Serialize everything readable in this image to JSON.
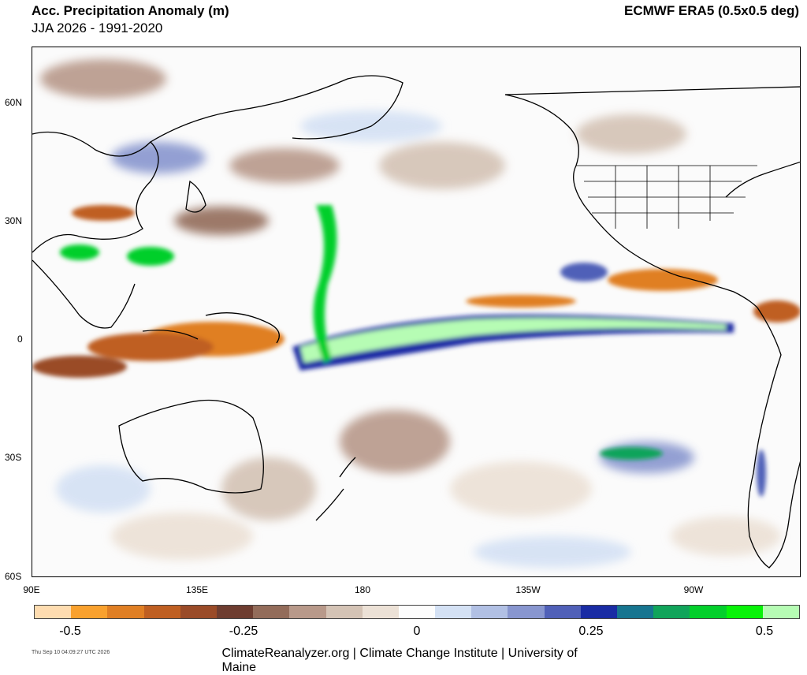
{
  "header": {
    "title": "Acc. Precipitation Anomaly (m)",
    "subtitle": "JJA 2026 - 1991-2020",
    "source": "ECMWF ERA5 (0.5x0.5 deg)"
  },
  "axes": {
    "y_labels": [
      "60N",
      "30N",
      "0",
      "30S",
      "60S"
    ],
    "x_labels": [
      "90E",
      "135E",
      "180",
      "135W",
      "90W"
    ]
  },
  "colorbar": {
    "colors": [
      "#fedcb0",
      "#f9a12e",
      "#e07f24",
      "#bf5f22",
      "#9a4b28",
      "#6e3d30",
      "#936c5a",
      "#b8998a",
      "#d4c3b5",
      "#ece1d6",
      "#fdfdfd",
      "#d4e1f4",
      "#b1c0e4",
      "#8896cf",
      "#5060b8",
      "#1a2ca4",
      "#177590",
      "#11a45a",
      "#03cf2b",
      "#08f208",
      "#b6fcb4"
    ],
    "tick_labels": [
      "-0.5",
      "-0.25",
      "0",
      "0.25",
      "0.5"
    ]
  },
  "footer": {
    "timestamp": "Thu Sep 10 04:09:27 UTC 2026",
    "credit": "ClimateReanalyzer.org | Climate Change Institute | University of Maine"
  }
}
